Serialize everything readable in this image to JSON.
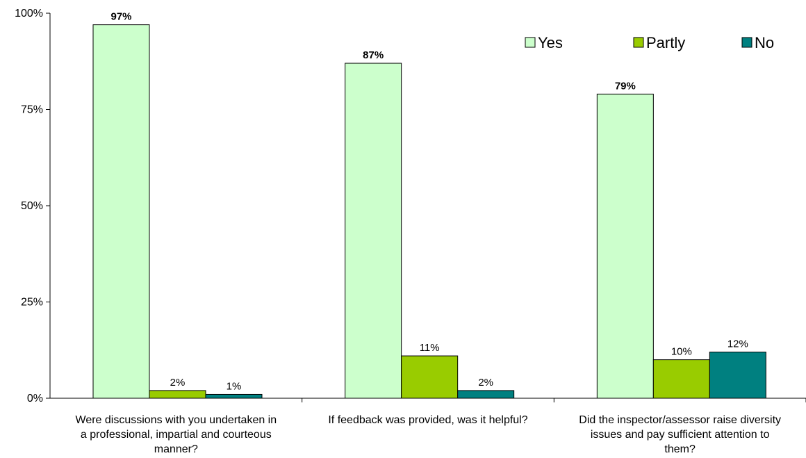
{
  "chart_data": {
    "type": "bar",
    "title": "",
    "xlabel": "",
    "ylabel": "",
    "ylim": [
      0,
      100
    ],
    "yticks": [
      0,
      25,
      50,
      75,
      100
    ],
    "yticklabels": [
      "0%",
      "25%",
      "50%",
      "75%",
      "100%"
    ],
    "categories": [
      [
        "Were discussions with you undertaken in",
        "a professional, impartial and courteous",
        "manner?"
      ],
      [
        "If feedback was provided, was it helpful?"
      ],
      [
        "Did the inspector/assessor raise diversity",
        "issues and pay sufficient attention to",
        "them?"
      ]
    ],
    "series": [
      {
        "name": "Yes",
        "color": "#ccffcc",
        "values": [
          97,
          87,
          79
        ],
        "labels": [
          "97%",
          "87%",
          "79%"
        ],
        "bold_labels": true
      },
      {
        "name": "Partly",
        "color": "#99cc00",
        "values": [
          2,
          11,
          10
        ],
        "labels": [
          "2%",
          "11%",
          "10%"
        ],
        "bold_labels": false
      },
      {
        "name": "No",
        "color": "#008080",
        "values": [
          1,
          2,
          12
        ],
        "labels": [
          "1%",
          "2%",
          "12%"
        ],
        "bold_labels": false
      }
    ],
    "legend_position": "top-right",
    "grid": false
  }
}
